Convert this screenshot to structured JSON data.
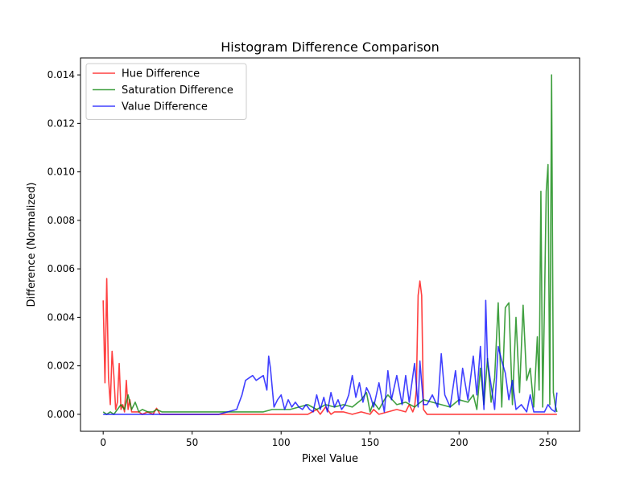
{
  "chart_data": {
    "type": "line",
    "title": "Histogram Difference Comparison",
    "xlabel": "Pixel Value",
    "ylabel": "Difference (Normalized)",
    "xlim": [
      -12.75,
      267.75
    ],
    "ylim": [
      -0.0007,
      0.0147
    ],
    "xticks": [
      0,
      50,
      100,
      150,
      200,
      250
    ],
    "yticks": [
      0.0,
      0.002,
      0.004,
      0.006,
      0.008,
      0.01,
      0.012,
      0.014
    ],
    "grid": false,
    "legend_position": "top-left",
    "series": [
      {
        "name": "Hue Difference",
        "color": "#ff0000",
        "x": [
          0,
          1,
          2,
          3,
          4,
          5,
          6,
          7,
          8,
          9,
          10,
          11,
          12,
          13,
          14,
          15,
          16,
          18,
          20,
          22,
          25,
          28,
          30,
          32,
          35,
          40,
          50,
          60,
          70,
          80,
          90,
          100,
          110,
          115,
          120,
          122,
          125,
          128,
          130,
          135,
          140,
          145,
          150,
          152,
          155,
          160,
          165,
          170,
          172,
          174,
          175,
          176,
          177,
          178,
          179,
          180,
          182,
          185,
          190,
          200,
          210,
          220,
          230,
          240,
          250,
          255
        ],
        "values": [
          0.0047,
          0.0013,
          0.0056,
          0.0015,
          0.0004,
          0.0026,
          0.0016,
          0.0002,
          0.0005,
          0.0021,
          0.0002,
          0.0004,
          0.0001,
          0.0014,
          0.0002,
          0.0006,
          0.0001,
          0.0001,
          0.0001,
          0.0,
          0.0001,
          0.0,
          0.00025,
          0.0,
          0.0,
          0.0,
          0.0,
          0.0,
          0.0,
          0.0,
          0.0,
          0.0,
          0.0,
          0.0,
          0.0002,
          0.0,
          0.0003,
          0.0,
          0.0001,
          0.0001,
          0.0,
          0.0001,
          0.0,
          0.0002,
          0.0,
          0.0001,
          0.0002,
          0.0001,
          0.0004,
          0.0001,
          0.0003,
          0.001,
          0.0049,
          0.0055,
          0.0049,
          0.0002,
          0.0,
          0.0,
          0.0,
          0.0,
          0.0,
          0.0,
          0.0,
          0.0,
          0.0,
          0.0
        ]
      },
      {
        "name": "Saturation Difference",
        "color": "#008000",
        "x": [
          0,
          2,
          4,
          6,
          8,
          10,
          12,
          14,
          16,
          18,
          20,
          22,
          25,
          28,
          30,
          33,
          36,
          40,
          45,
          50,
          55,
          60,
          65,
          70,
          75,
          80,
          85,
          90,
          95,
          100,
          105,
          110,
          115,
          120,
          125,
          130,
          135,
          140,
          145,
          148,
          150,
          152,
          155,
          158,
          160,
          165,
          170,
          175,
          180,
          185,
          190,
          195,
          200,
          205,
          208,
          210,
          212,
          214,
          216,
          218,
          220,
          222,
          224,
          226,
          228,
          230,
          232,
          234,
          236,
          238,
          240,
          242,
          244,
          245,
          246,
          247,
          248,
          249,
          250,
          251,
          252,
          253,
          254,
          255
        ],
        "values": [
          0.0001,
          0.0,
          0.0001,
          0.0,
          0.0002,
          0.0004,
          0.0002,
          0.0008,
          0.0002,
          0.0005,
          0.0001,
          0.0002,
          0.0001,
          0.0001,
          0.0002,
          0.0001,
          0.0001,
          0.0001,
          0.0001,
          0.0001,
          0.0001,
          0.0001,
          0.0001,
          0.0001,
          0.0001,
          0.0001,
          0.0001,
          0.0001,
          0.0002,
          0.0002,
          0.0002,
          0.0003,
          0.0004,
          0.0002,
          0.0004,
          0.0003,
          0.0004,
          0.0003,
          0.0006,
          0.0009,
          0.0001,
          0.0005,
          0.0002,
          0.0006,
          0.0008,
          0.0004,
          0.0005,
          0.0003,
          0.0006,
          0.0005,
          0.0004,
          0.0003,
          0.0006,
          0.0005,
          0.0008,
          0.0002,
          0.0019,
          0.0004,
          0.0023,
          0.0005,
          0.0015,
          0.0046,
          0.0003,
          0.0044,
          0.0046,
          0.0004,
          0.004,
          0.0009,
          0.0045,
          0.0014,
          0.0019,
          0.0003,
          0.0032,
          0.001,
          0.0092,
          0.0003,
          0.0045,
          0.0092,
          0.0103,
          0.0004,
          0.014,
          0.0009,
          0.0004,
          0.0001
        ]
      },
      {
        "name": "Value Difference",
        "color": "#0000ff",
        "x": [
          0,
          5,
          10,
          15,
          20,
          25,
          30,
          35,
          40,
          45,
          50,
          55,
          60,
          65,
          70,
          75,
          78,
          80,
          82,
          84,
          86,
          88,
          90,
          92,
          93,
          94,
          96,
          98,
          100,
          102,
          104,
          106,
          108,
          110,
          112,
          114,
          116,
          118,
          120,
          122,
          124,
          126,
          128,
          130,
          132,
          134,
          136,
          138,
          140,
          142,
          144,
          146,
          148,
          150,
          152,
          155,
          158,
          160,
          162,
          165,
          168,
          170,
          172,
          175,
          177,
          178,
          180,
          182,
          185,
          188,
          190,
          192,
          195,
          198,
          200,
          202,
          205,
          208,
          210,
          212,
          214,
          215,
          216,
          218,
          220,
          222,
          224,
          226,
          228,
          230,
          232,
          235,
          238,
          240,
          242,
          245,
          248,
          250,
          252,
          254,
          255
        ],
        "values": [
          0.0,
          0.0,
          0.0,
          0.0,
          0.0,
          0.0,
          0.0,
          0.0,
          0.0,
          0.0,
          0.0,
          0.0,
          0.0,
          0.0,
          0.0001,
          0.0002,
          0.0008,
          0.0014,
          0.0015,
          0.0016,
          0.0014,
          0.0015,
          0.0016,
          0.001,
          0.0024,
          0.0019,
          0.0003,
          0.0006,
          0.0008,
          0.0002,
          0.0006,
          0.0003,
          0.0005,
          0.0003,
          0.0002,
          0.0004,
          0.0002,
          0.0001,
          0.0008,
          0.0002,
          0.0007,
          0.0001,
          0.0009,
          0.0003,
          0.0006,
          0.0002,
          0.0004,
          0.0008,
          0.0016,
          0.0007,
          0.0013,
          0.0005,
          0.0011,
          0.0008,
          0.0003,
          0.0013,
          0.0001,
          0.0018,
          0.0006,
          0.0016,
          0.0004,
          0.0016,
          0.0005,
          0.0021,
          0.0003,
          0.0022,
          0.0004,
          0.0004,
          0.0008,
          0.0003,
          0.0025,
          0.0008,
          0.0003,
          0.0018,
          0.0004,
          0.0019,
          0.0006,
          0.0024,
          0.0008,
          0.0028,
          0.0002,
          0.0047,
          0.0022,
          0.0012,
          0.0002,
          0.0028,
          0.0022,
          0.0017,
          0.0006,
          0.0014,
          0.0002,
          0.0004,
          0.0001,
          0.0008,
          0.0001,
          0.0001,
          0.0001,
          0.0004,
          0.0002,
          0.0001,
          0.0009
        ]
      }
    ]
  }
}
